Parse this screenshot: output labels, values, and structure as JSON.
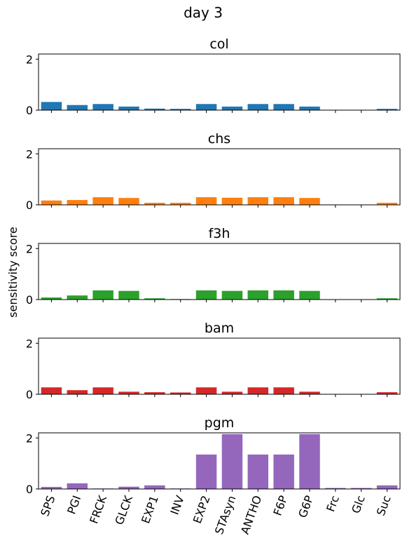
{
  "figure": {
    "title": "day 3",
    "ylabel": "sensitivity score"
  },
  "chart_data": {
    "type": "bar",
    "title": "day 3",
    "ylabel": "sensitivity score",
    "xlabel": "",
    "categories": [
      "SPS",
      "PGI",
      "FRCK",
      "GLCK",
      "EXP1",
      "INV",
      "EXP2",
      "STAsyn",
      "ANTHO",
      "F6P",
      "G6P",
      "Frc",
      "Glc",
      "Suc"
    ],
    "ylim": [
      0,
      2.2
    ],
    "yticks": [
      0,
      2
    ],
    "grid": false,
    "panels": [
      {
        "name": "col",
        "color": "#1f77b4",
        "values": [
          0.32,
          0.2,
          0.24,
          0.14,
          0.06,
          0.05,
          0.24,
          0.14,
          0.24,
          0.24,
          0.14,
          0.0,
          0.0,
          0.05
        ]
      },
      {
        "name": "chs",
        "color": "#ff7f0e",
        "values": [
          0.17,
          0.19,
          0.3,
          0.27,
          0.08,
          0.08,
          0.3,
          0.28,
          0.3,
          0.3,
          0.27,
          0.0,
          0.0,
          0.08
        ]
      },
      {
        "name": "f3h",
        "color": "#2ca02c",
        "values": [
          0.08,
          0.16,
          0.36,
          0.34,
          0.05,
          0.02,
          0.36,
          0.34,
          0.36,
          0.36,
          0.34,
          0.0,
          0.0,
          0.05
        ]
      },
      {
        "name": "bam",
        "color": "#d62728",
        "values": [
          0.27,
          0.16,
          0.27,
          0.1,
          0.08,
          0.07,
          0.27,
          0.1,
          0.27,
          0.27,
          0.1,
          0.0,
          0.0,
          0.08
        ]
      },
      {
        "name": "pgm",
        "color": "#9467bd",
        "values": [
          0.08,
          0.22,
          0.02,
          0.09,
          0.14,
          0.02,
          1.35,
          2.15,
          1.35,
          1.35,
          2.15,
          0.04,
          0.04,
          0.14
        ]
      }
    ]
  }
}
